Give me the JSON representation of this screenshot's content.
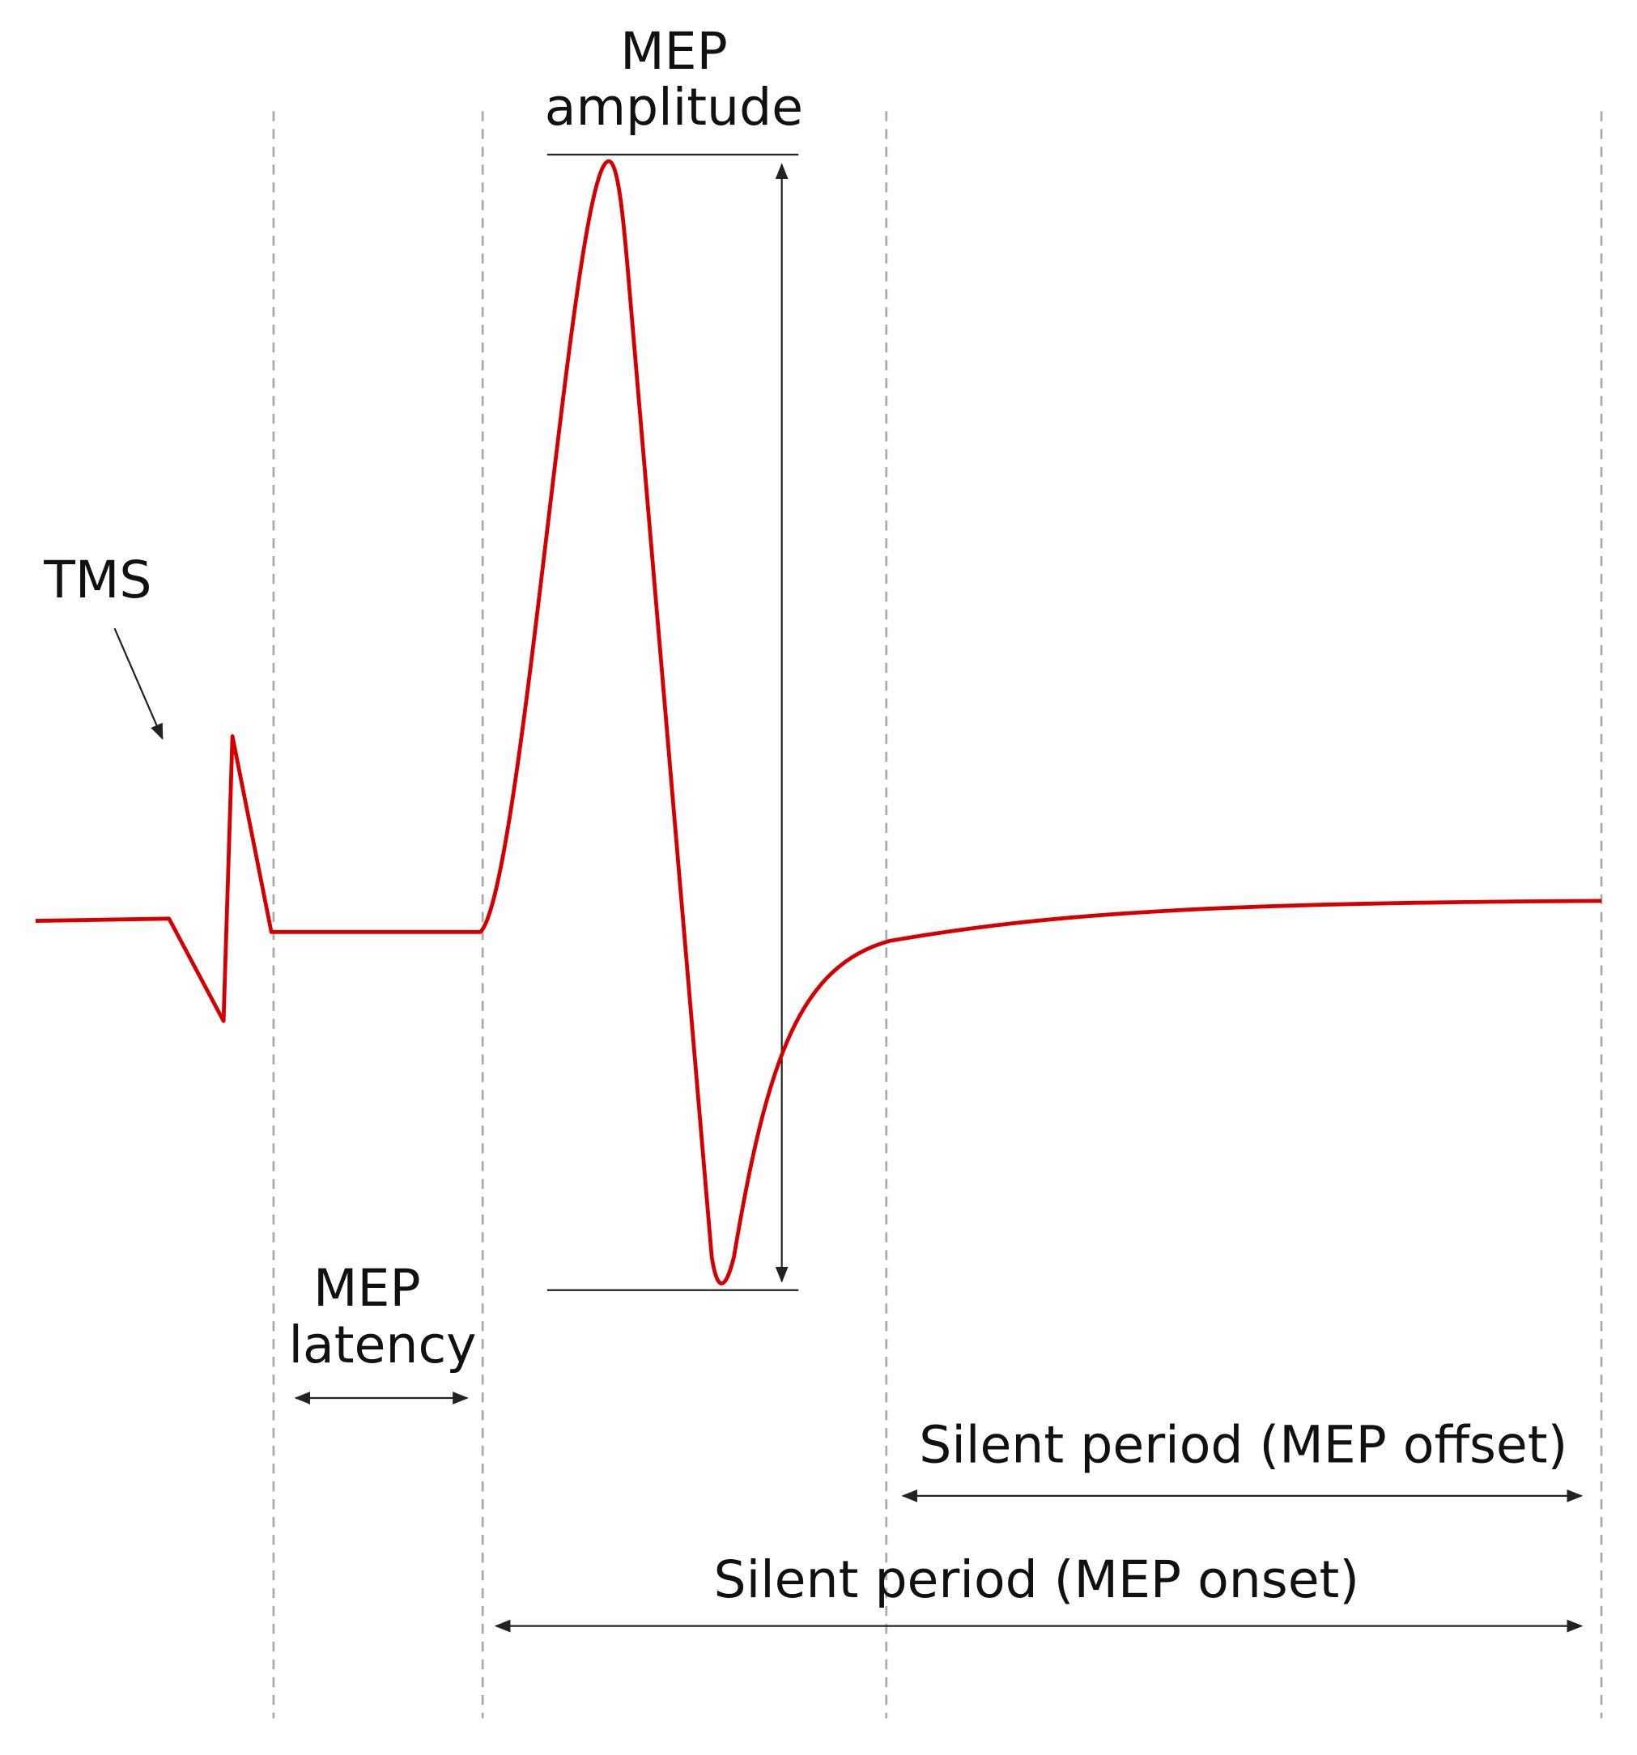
{
  "annotations": {
    "tms": "TMS",
    "mep_amplitude": [
      "MEP",
      "amplitude"
    ],
    "mep_latency": [
      "MEP",
      "latency"
    ],
    "silent_period_offset": "Silent period (MEP offset)",
    "silent_period_onset": "Silent period (MEP onset)"
  }
}
